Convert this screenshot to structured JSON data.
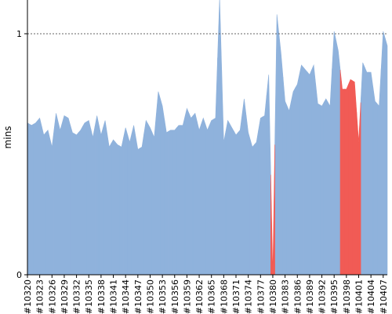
{
  "chart_data": {
    "type": "area",
    "title": "",
    "xlabel": "",
    "ylabel": "mins",
    "ylim": [
      0,
      1.14
    ],
    "y_ticks": [
      {
        "value": 0,
        "label": "0"
      },
      {
        "value": 1,
        "label": "1"
      }
    ],
    "reference_line": {
      "value": 1,
      "style": "dashed"
    },
    "colors": {
      "normal": "#8fb2dc",
      "highlight": "#f15b55",
      "axis": "#000000",
      "ref_line": "#666666"
    },
    "x_tick_labels": [
      "#10320",
      "#10323",
      "#10326",
      "#10329",
      "#10332",
      "#10335",
      "#10338",
      "#10341",
      "#10344",
      "#10347",
      "#10350",
      "#10353",
      "#10356",
      "#10359",
      "#10362",
      "#10365",
      "#10368",
      "#10371",
      "#10374",
      "#10377",
      "#10380",
      "#10383",
      "#10386",
      "#10389",
      "#10392",
      "#10395",
      "#10398",
      "#10401",
      "#10404",
      "#10407"
    ],
    "x_start": 10320,
    "values": [
      0.63,
      0.62,
      0.63,
      0.65,
      0.58,
      0.6,
      0.53,
      0.67,
      0.6,
      0.66,
      0.65,
      0.59,
      0.58,
      0.6,
      0.63,
      0.64,
      0.57,
      0.66,
      0.58,
      0.64,
      0.53,
      0.56,
      0.54,
      0.53,
      0.61,
      0.55,
      0.62,
      0.52,
      0.53,
      0.64,
      0.61,
      0.57,
      0.76,
      0.7,
      0.59,
      0.6,
      0.6,
      0.62,
      0.62,
      0.69,
      0.65,
      0.67,
      0.6,
      0.65,
      0.6,
      0.64,
      0.65,
      1.15,
      0.55,
      0.64,
      0.61,
      0.58,
      0.6,
      0.73,
      0.59,
      0.53,
      0.55,
      0.65,
      0.66,
      0.83,
      0.0,
      1.08,
      0.92,
      0.72,
      0.68,
      0.76,
      0.79,
      0.87,
      0.85,
      0.83,
      0.87,
      0.71,
      0.7,
      0.73,
      0.7,
      1.01,
      0.93,
      0.77,
      0.77,
      0.81,
      0.8,
      0.55,
      0.88,
      0.84,
      0.84,
      0.72,
      0.7,
      1.01,
      0.95
    ],
    "highlights": [
      {
        "from": 10380,
        "to": 10380
      },
      {
        "from": 10397,
        "to": 10401
      }
    ]
  }
}
